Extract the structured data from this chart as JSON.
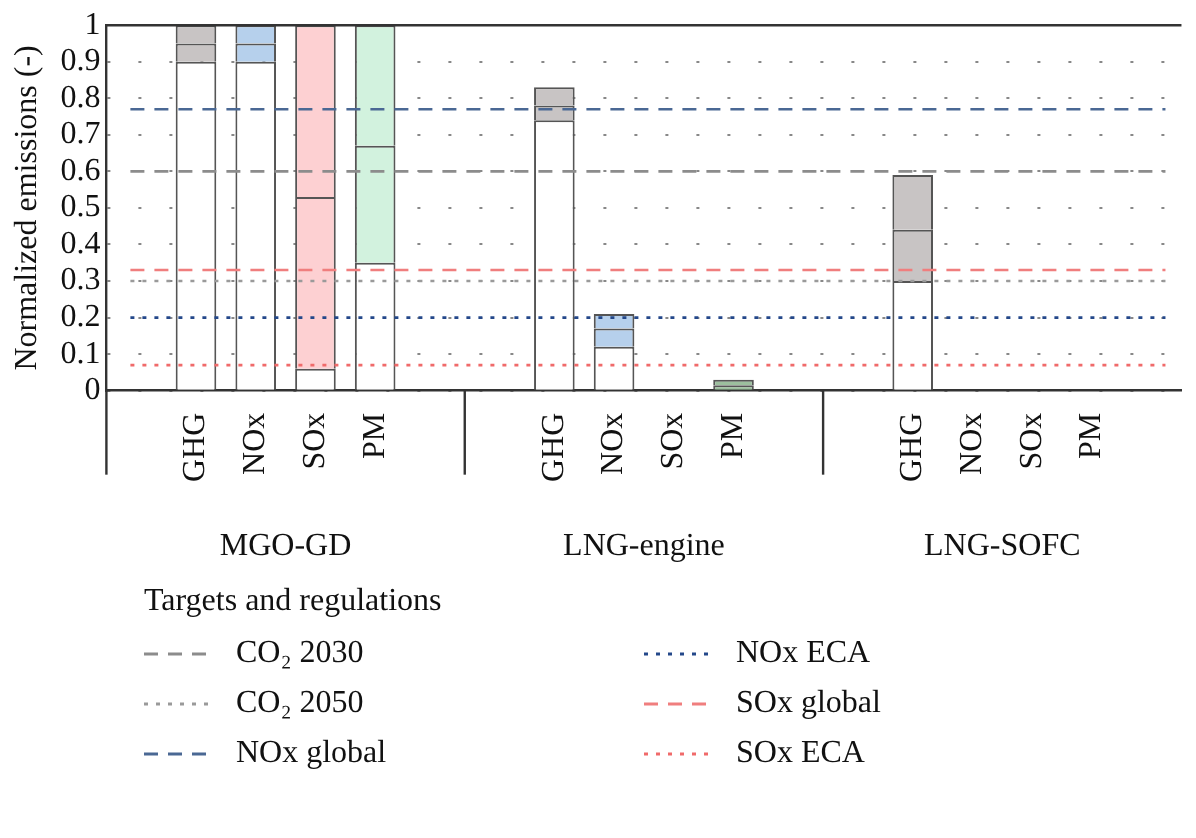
{
  "chart_data": {
    "type": "bar",
    "stacked": true,
    "ylabel": "Normalized emissions (-)",
    "legend_title": "Targets and regulations",
    "legend": "bottom",
    "grid": "y",
    "categories": [
      null,
      "GHG",
      "NOx",
      "SOx",
      "PM",
      null,
      null,
      "GHG",
      "NOx",
      "SOx",
      "PM",
      null,
      null,
      "GHG",
      "NOx",
      "SOx",
      "PM",
      null
    ],
    "series": [
      {
        "color": "#ffffff",
        "values": [
          null,
          0.9,
          0.9,
          0.06,
          0.35,
          null,
          null,
          0.74,
          0.12,
          0,
          0,
          null,
          null,
          0.3,
          0,
          0,
          0,
          null
        ]
      },
      {
        "color": "#c8c4c4",
        "colors": [
          null,
          "#c8c4c4",
          "#b6d0ec",
          "#fdd0d2",
          "#d2f2de",
          null,
          null,
          "#c8c4c4",
          "#b6d0ec",
          "#fdd0d2",
          "#9cbf9e",
          null,
          null,
          "#c8c4c4",
          "#b6d0ec",
          "#fdd0d2",
          "#d2f2de",
          null
        ],
        "values": [
          null,
          0.05,
          0.05,
          0.47,
          0.32,
          null,
          null,
          0.04,
          0.05,
          null,
          0.015,
          null,
          null,
          0.14,
          null,
          0,
          0,
          null
        ]
      },
      {
        "color": "#c8c4c4",
        "colors": [
          null,
          "#c8c4c4",
          "#b6d0ec",
          "#fdd0d2",
          "#d2f2de",
          null,
          null,
          "#c8c4c4",
          "#b6d0ec",
          "#fdd0d2",
          "#9cbf9e",
          null,
          null,
          "#c8c4c4",
          "#b6d0ec",
          "#fdd0d2",
          "#d2f2de",
          null
        ],
        "values": [
          null,
          0.05,
          0.05,
          0.47,
          0.33,
          null,
          null,
          0.05,
          0.04,
          null,
          0.015,
          null,
          null,
          0.15,
          null,
          0,
          0,
          null
        ]
      }
    ],
    "ylim": [
      0,
      1
    ],
    "yticks": [
      0,
      0.1,
      0.2,
      0.3,
      0.4,
      0.5,
      0.6,
      0.7,
      0.8,
      0.9,
      1
    ],
    "ref_lines": [
      {
        "axis": "y",
        "value": 0.6,
        "label": "CO₂ 2030",
        "color": "#8c8c8c",
        "line_style": "dashed"
      },
      {
        "axis": "y",
        "value": 0.3,
        "label": "CO₂ 2050",
        "color": "#9a9a9a",
        "line_style": "dotted"
      },
      {
        "axis": "y",
        "value": 0.77,
        "label": "NOx global",
        "color": "#4a6894",
        "line_style": "dashed"
      },
      {
        "axis": "y",
        "value": 0.2,
        "label": "NOx ECA",
        "color": "#24488a",
        "line_style": "dotted"
      },
      {
        "axis": "y",
        "value": 0.33,
        "label": "SOx global",
        "color": "#f07e7e",
        "line_style": "dashed"
      },
      {
        "axis": "y",
        "value": 0.07,
        "label": "SOx ECA",
        "color": "#f06a6a",
        "line_style": "dotted"
      }
    ],
    "annotations": [
      "MGO-GD",
      "LNG-engine",
      "LNG-SOFC"
    ]
  }
}
